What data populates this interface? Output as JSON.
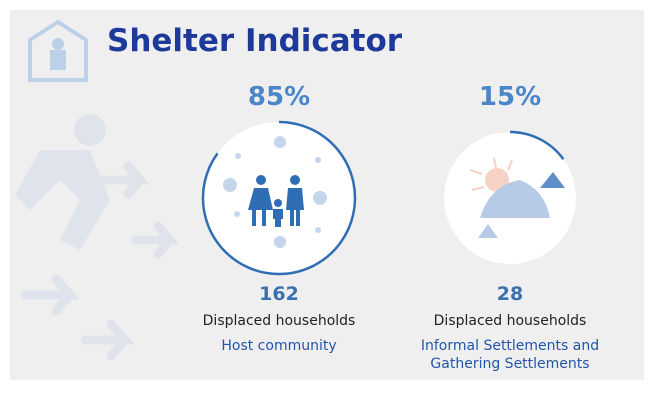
{
  "chart_data": {
    "type": "ring",
    "title": "Shelter Indicator",
    "categories": [
      "Host community",
      "Informal Settlements and Gathering Settlements"
    ],
    "values": [
      85,
      15
    ],
    "value_labels": [
      "85%",
      "15%"
    ],
    "counts": [
      162,
      28
    ],
    "count_labels": [
      "Displaced households",
      "Displaced households"
    ],
    "color": "#2f6db5"
  }
}
